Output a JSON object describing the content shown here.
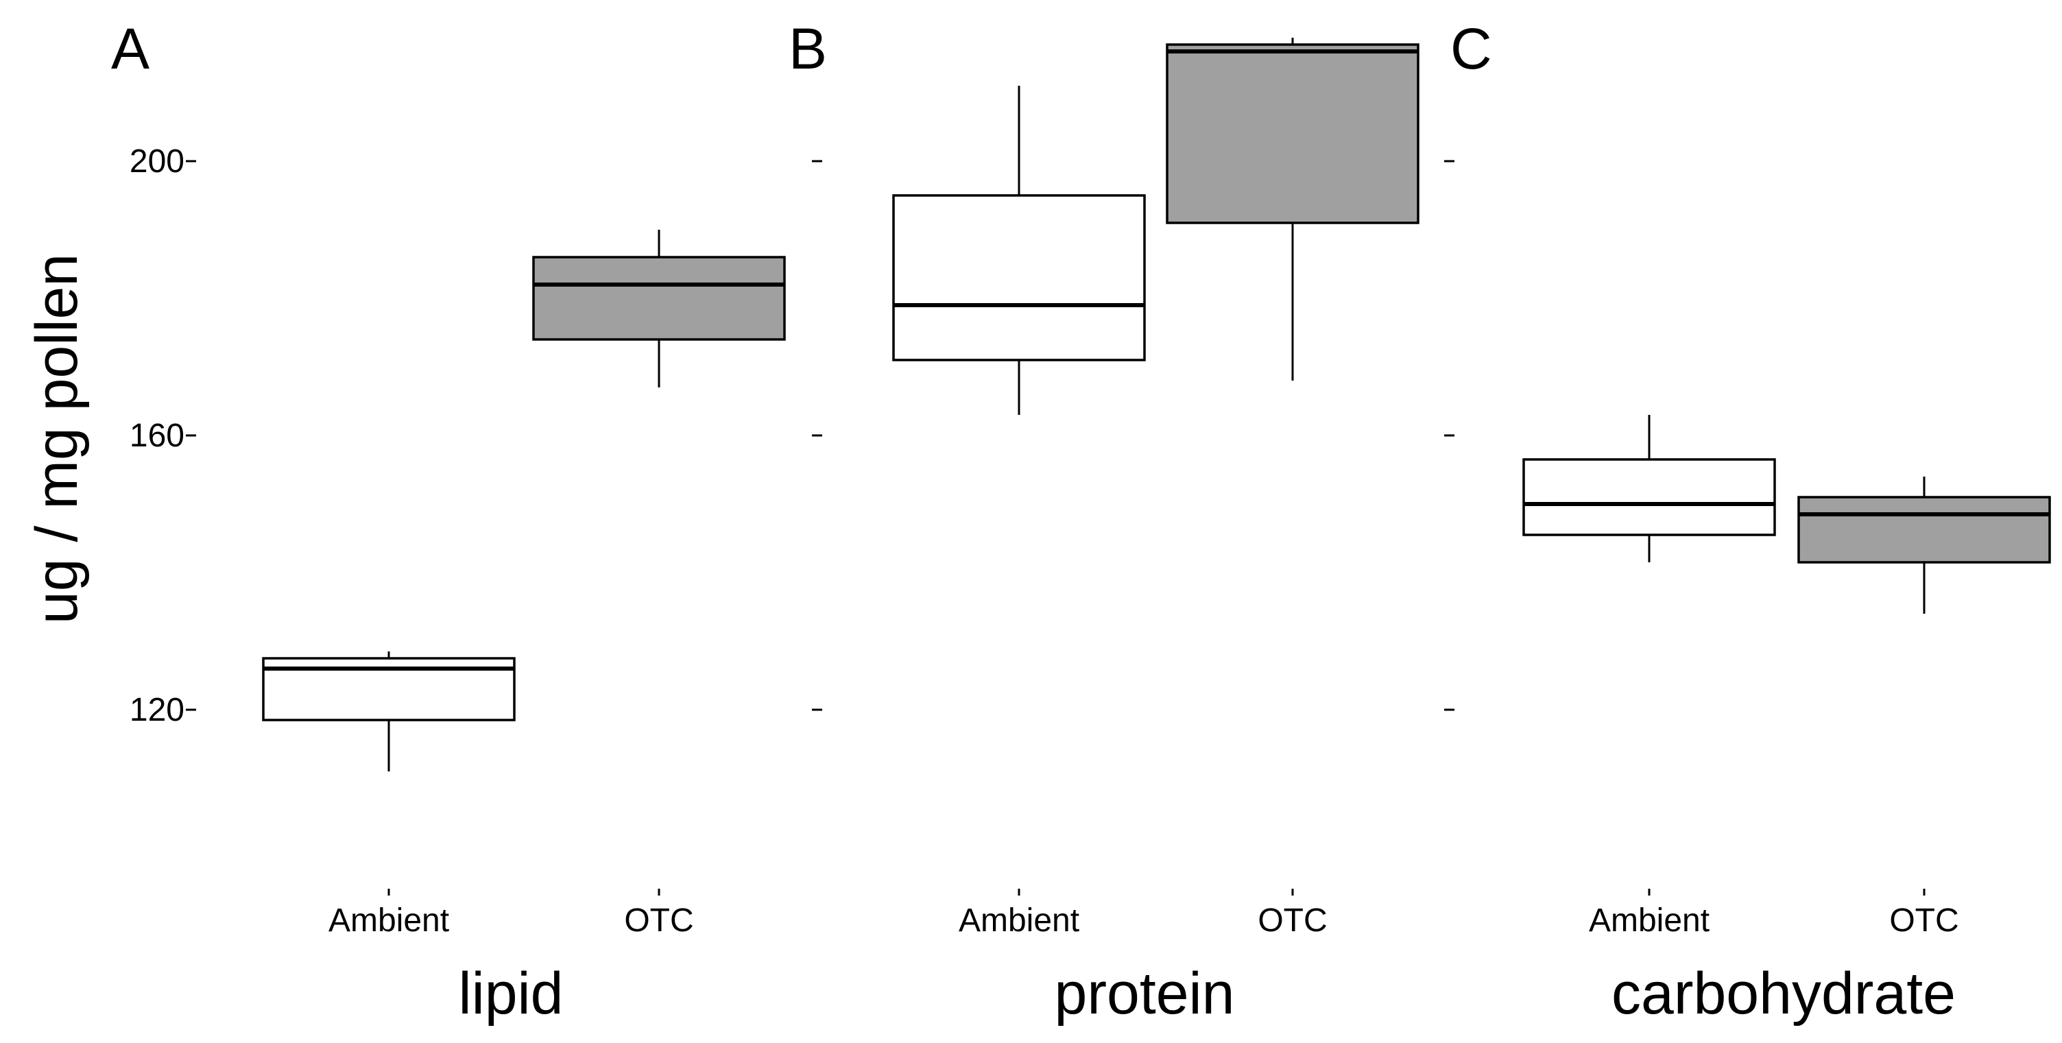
{
  "chart_data": {
    "type": "box",
    "ylabel": "ug / mg pollen",
    "y_ticks": [
      120,
      160,
      200
    ],
    "ylim": [
      92,
      222
    ],
    "groups": [
      "Ambient",
      "OTC"
    ],
    "colors": {
      "Ambient": "#ffffff",
      "OTC": "#a0a0a0"
    },
    "panels": [
      {
        "letter": "A",
        "xlabel": "lipid",
        "boxes": [
          {
            "group": "Ambient",
            "min": 111,
            "q1": 118.5,
            "median": 126,
            "q3": 127.5,
            "max": 128.5
          },
          {
            "group": "OTC",
            "min": 167,
            "q1": 174,
            "median": 182,
            "q3": 186,
            "max": 190
          }
        ]
      },
      {
        "letter": "B",
        "xlabel": "protein",
        "boxes": [
          {
            "group": "Ambient",
            "min": 163,
            "q1": 171,
            "median": 179,
            "q3": 195,
            "max": 211
          },
          {
            "group": "OTC",
            "min": 168,
            "q1": 191,
            "median": 216,
            "q3": 217,
            "max": 218
          }
        ]
      },
      {
        "letter": "C",
        "xlabel": "carbohydrate",
        "boxes": [
          {
            "group": "Ambient",
            "min": 141.5,
            "q1": 145.5,
            "median": 150,
            "q3": 156.5,
            "max": 163
          },
          {
            "group": "OTC",
            "min": 134,
            "q1": 141.5,
            "median": 148.5,
            "q3": 151,
            "max": 154
          }
        ]
      }
    ]
  }
}
